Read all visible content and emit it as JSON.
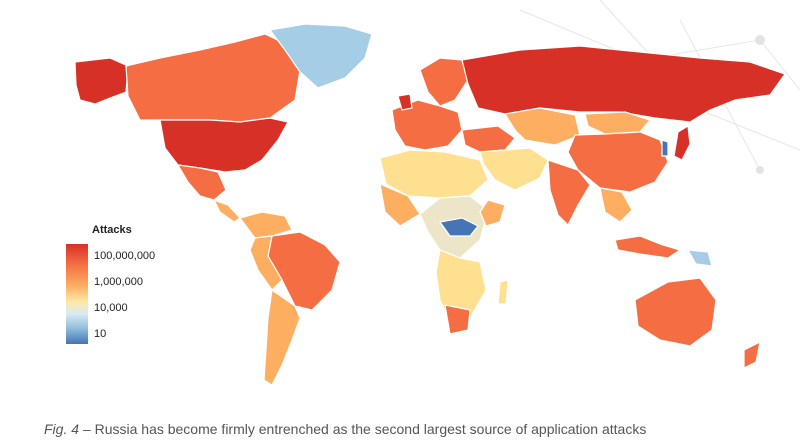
{
  "legend": {
    "title": "Attacks",
    "labels": [
      "100,000,000",
      "1,000,000",
      "10,000",
      "10"
    ],
    "scale": "logarithmic",
    "colors": [
      "#d73027",
      "#f46d43",
      "#fdae61",
      "#fee8a8",
      "#d8eaf4",
      "#91bfdb",
      "#4575b4"
    ]
  },
  "caption": {
    "figure": "Fig. 4",
    "separator": "–",
    "text": "Russia has become firmly entrenched as the second largest source of application attacks"
  },
  "colors": {
    "very_high": "#d73027",
    "high": "#f46d43",
    "mid_high": "#fdae61",
    "mid": "#fee090",
    "low_mid": "#ede5c7",
    "low": "#d1e5f0",
    "very_low": "#91bfdb",
    "lowest": "#4575b4"
  }
}
